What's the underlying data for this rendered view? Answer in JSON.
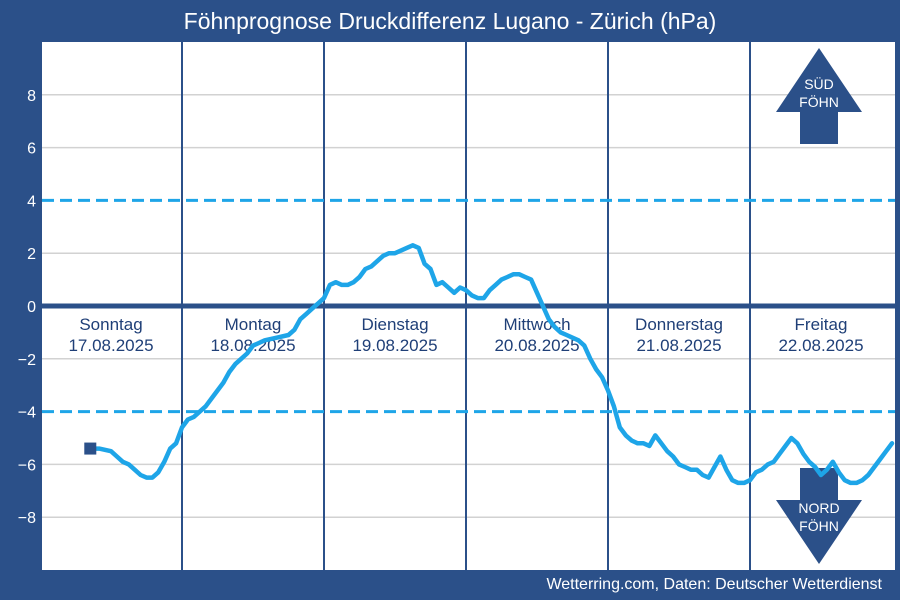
{
  "title": "Föhnprognose Druckdifferenz Lugano - Zürich (hPa)",
  "credit": "Wetterring.com, Daten: Deutscher Wetterdienst",
  "colors": {
    "background": "#2b5089",
    "plot": "#ffffff",
    "line": "#1ea5e8",
    "threshold": "#1ea5e8",
    "zero_line": "#2b5089",
    "day_separator": "#2b5089",
    "grid": "#d2d2d2",
    "day_text": "#1f3f77"
  },
  "arrows": {
    "up": {
      "line1": "SÜD",
      "line2": "FÖHN",
      "icon": "arrow-up"
    },
    "down": {
      "line1": "NORD",
      "line2": "FÖHN",
      "icon": "arrow-down"
    }
  },
  "chart_data": {
    "type": "line",
    "ylim": [
      -10,
      10
    ],
    "y_ticks": [
      8,
      6,
      4,
      2,
      0,
      -2,
      -4,
      -6,
      -8
    ],
    "thresholds": [
      4,
      -4
    ],
    "grid": true,
    "days": [
      {
        "name": "Sonntag",
        "date": "17.08.2025"
      },
      {
        "name": "Montag",
        "date": "18.08.2025"
      },
      {
        "name": "Dienstag",
        "date": "19.08.2025"
      },
      {
        "name": "Mittwoch",
        "date": "20.08.2025"
      },
      {
        "name": "Donnerstag",
        "date": "21.08.2025"
      },
      {
        "name": "Freitag",
        "date": "22.08.2025"
      }
    ],
    "x_unit": "hours since 17.08.2025 00:00",
    "xlim": [
      0,
      144
    ],
    "series": [
      {
        "start_marker": true,
        "points": [
          [
            8.5,
            -5.4
          ],
          [
            10,
            -5.4
          ],
          [
            12,
            -5.5
          ],
          [
            13,
            -5.7
          ],
          [
            14,
            -5.9
          ],
          [
            15,
            -6.0
          ],
          [
            16,
            -6.2
          ],
          [
            17,
            -6.4
          ],
          [
            18,
            -6.5
          ],
          [
            19,
            -6.5
          ],
          [
            20,
            -6.3
          ],
          [
            21,
            -5.9
          ],
          [
            22,
            -5.4
          ],
          [
            23,
            -5.2
          ],
          [
            24,
            -4.6
          ],
          [
            25,
            -4.3
          ],
          [
            26,
            -4.2
          ],
          [
            27,
            -4.0
          ],
          [
            28,
            -3.8
          ],
          [
            29,
            -3.5
          ],
          [
            30,
            -3.2
          ],
          [
            31,
            -2.9
          ],
          [
            32,
            -2.5
          ],
          [
            33,
            -2.2
          ],
          [
            34,
            -2.0
          ],
          [
            35,
            -1.8
          ],
          [
            36,
            -1.5
          ],
          [
            37,
            -1.4
          ],
          [
            38,
            -1.3
          ],
          [
            40,
            -1.2
          ],
          [
            42,
            -1.1
          ],
          [
            43,
            -0.9
          ],
          [
            44,
            -0.5
          ],
          [
            45,
            -0.3
          ],
          [
            46,
            -0.1
          ],
          [
            47,
            0.1
          ],
          [
            48,
            0.3
          ],
          [
            49,
            0.8
          ],
          [
            50,
            0.9
          ],
          [
            51,
            0.8
          ],
          [
            52,
            0.8
          ],
          [
            53,
            0.9
          ],
          [
            54,
            1.1
          ],
          [
            55,
            1.4
          ],
          [
            56,
            1.5
          ],
          [
            57,
            1.7
          ],
          [
            58,
            1.9
          ],
          [
            59,
            2.0
          ],
          [
            60,
            2.0
          ],
          [
            61,
            2.1
          ],
          [
            62,
            2.2
          ],
          [
            63,
            2.3
          ],
          [
            64,
            2.2
          ],
          [
            65,
            1.6
          ],
          [
            66,
            1.4
          ],
          [
            67,
            0.8
          ],
          [
            68,
            0.9
          ],
          [
            69,
            0.7
          ],
          [
            70,
            0.5
          ],
          [
            71,
            0.7
          ],
          [
            72,
            0.6
          ],
          [
            73,
            0.4
          ],
          [
            74,
            0.3
          ],
          [
            75,
            0.3
          ],
          [
            76,
            0.6
          ],
          [
            77,
            0.8
          ],
          [
            78,
            1.0
          ],
          [
            79,
            1.1
          ],
          [
            80,
            1.2
          ],
          [
            81,
            1.2
          ],
          [
            82,
            1.1
          ],
          [
            83,
            1.0
          ],
          [
            84,
            0.5
          ],
          [
            85,
            0.0
          ],
          [
            86,
            -0.5
          ],
          [
            87,
            -0.8
          ],
          [
            88,
            -1.0
          ],
          [
            89,
            -1.1
          ],
          [
            90,
            -1.2
          ],
          [
            91,
            -1.3
          ],
          [
            92,
            -1.5
          ],
          [
            93,
            -2.0
          ],
          [
            94,
            -2.4
          ],
          [
            95,
            -2.7
          ],
          [
            96,
            -3.2
          ],
          [
            97,
            -3.8
          ],
          [
            98,
            -4.6
          ],
          [
            99,
            -4.9
          ],
          [
            100,
            -5.1
          ],
          [
            101,
            -5.2
          ],
          [
            102,
            -5.2
          ],
          [
            103,
            -5.3
          ],
          [
            104,
            -4.9
          ],
          [
            105,
            -5.2
          ],
          [
            106,
            -5.5
          ],
          [
            107,
            -5.7
          ],
          [
            108,
            -6.0
          ],
          [
            109,
            -6.1
          ],
          [
            110,
            -6.2
          ],
          [
            111,
            -6.2
          ],
          [
            112,
            -6.4
          ],
          [
            113,
            -6.5
          ],
          [
            114,
            -6.1
          ],
          [
            115,
            -5.7
          ],
          [
            116,
            -6.2
          ],
          [
            117,
            -6.6
          ],
          [
            118,
            -6.7
          ],
          [
            119,
            -6.7
          ],
          [
            120,
            -6.6
          ],
          [
            121,
            -6.3
          ],
          [
            122,
            -6.2
          ],
          [
            123,
            -6.0
          ],
          [
            124,
            -5.9
          ],
          [
            125,
            -5.6
          ],
          [
            126,
            -5.3
          ],
          [
            127,
            -5.0
          ],
          [
            128,
            -5.2
          ],
          [
            129,
            -5.6
          ],
          [
            130,
            -5.9
          ],
          [
            131,
            -6.1
          ],
          [
            132,
            -6.4
          ],
          [
            133,
            -6.2
          ],
          [
            134,
            -5.9
          ],
          [
            135,
            -6.3
          ],
          [
            136,
            -6.6
          ],
          [
            137,
            -6.7
          ],
          [
            138,
            -6.7
          ],
          [
            139,
            -6.6
          ],
          [
            140,
            -6.4
          ],
          [
            141,
            -6.1
          ],
          [
            142,
            -5.8
          ],
          [
            143,
            -5.5
          ],
          [
            144,
            -5.2
          ]
        ]
      }
    ]
  }
}
